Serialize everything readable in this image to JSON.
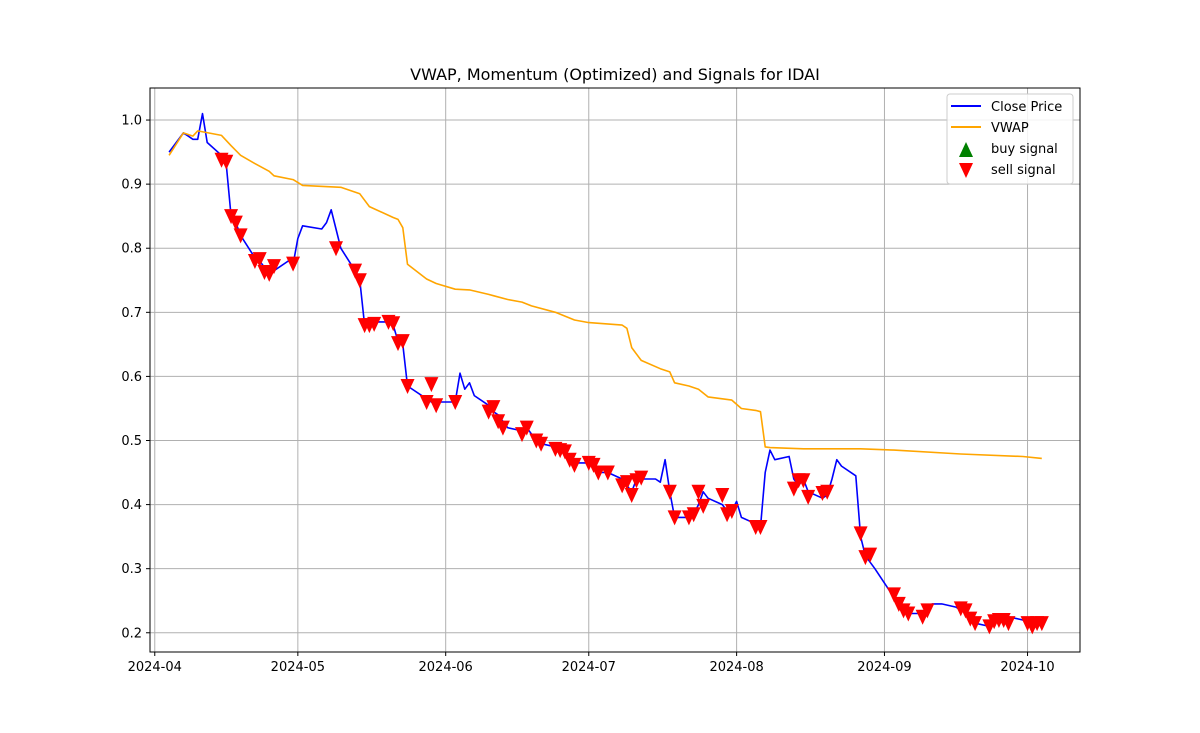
{
  "chart_data": {
    "type": "line",
    "title": "VWAP, Momentum (Optimized) and Signals for IDAI",
    "xlabel": "",
    "ylabel": "",
    "xlim": [
      "2024-03-31",
      "2024-10-12"
    ],
    "ylim": [
      0.17,
      1.05
    ],
    "xticks": [
      "2024-04-01",
      "2024-05-01",
      "2024-06-01",
      "2024-07-01",
      "2024-08-01",
      "2024-09-01",
      "2024-10-01"
    ],
    "xtick_labels": [
      "2024-04",
      "2024-05",
      "2024-06",
      "2024-07",
      "2024-08",
      "2024-09",
      "2024-10"
    ],
    "yticks": [
      0.2,
      0.3,
      0.4,
      0.5,
      0.6,
      0.7,
      0.8,
      0.9,
      1.0
    ],
    "ytick_labels": [
      "0.2",
      "0.3",
      "0.4",
      "0.5",
      "0.6",
      "0.7",
      "0.8",
      "0.9",
      "1.0"
    ],
    "grid": true,
    "legend_position": "top-right",
    "colors": {
      "close": "#0000ff",
      "vwap": "#ffa500",
      "buy": "#008000",
      "sell": "#ff0000"
    },
    "series": [
      {
        "name": "Close Price",
        "kind": "line",
        "x": [
          "2024-04-04",
          "2024-04-07",
          "2024-04-08",
          "2024-04-09",
          "2024-04-10",
          "2024-04-11",
          "2024-04-12",
          "2024-04-15",
          "2024-04-16",
          "2024-04-17",
          "2024-04-18",
          "2024-04-19",
          "2024-04-22",
          "2024-04-23",
          "2024-04-24",
          "2024-04-25",
          "2024-04-26",
          "2024-04-29",
          "2024-04-30",
          "2024-05-01",
          "2024-05-02",
          "2024-05-06",
          "2024-05-07",
          "2024-05-08",
          "2024-05-09",
          "2024-05-10",
          "2024-05-13",
          "2024-05-14",
          "2024-05-15",
          "2024-05-16",
          "2024-05-17",
          "2024-05-20",
          "2024-05-21",
          "2024-05-22",
          "2024-05-23",
          "2024-05-24",
          "2024-05-28",
          "2024-05-29",
          "2024-05-30",
          "2024-05-31",
          "2024-06-03",
          "2024-06-04",
          "2024-06-05",
          "2024-06-06",
          "2024-06-07",
          "2024-06-10",
          "2024-06-11",
          "2024-06-12",
          "2024-06-13",
          "2024-06-14",
          "2024-06-17",
          "2024-06-18",
          "2024-06-20",
          "2024-06-21",
          "2024-06-24",
          "2024-06-25",
          "2024-06-26",
          "2024-06-27",
          "2024-06-28",
          "2024-07-01",
          "2024-07-02",
          "2024-07-03",
          "2024-07-05",
          "2024-07-08",
          "2024-07-09",
          "2024-07-10",
          "2024-07-11",
          "2024-07-12",
          "2024-07-15",
          "2024-07-16",
          "2024-07-17",
          "2024-07-18",
          "2024-07-19",
          "2024-07-22",
          "2024-07-23",
          "2024-07-24",
          "2024-07-25",
          "2024-07-26",
          "2024-07-29",
          "2024-07-30",
          "2024-07-31",
          "2024-08-01",
          "2024-08-02",
          "2024-08-05",
          "2024-08-06",
          "2024-08-07",
          "2024-08-08",
          "2024-08-09",
          "2024-08-12",
          "2024-08-13",
          "2024-08-14",
          "2024-08-15",
          "2024-08-16",
          "2024-08-19",
          "2024-08-20",
          "2024-08-21",
          "2024-08-22",
          "2024-08-23",
          "2024-08-26",
          "2024-08-27",
          "2024-08-28",
          "2024-08-29",
          "2024-08-30",
          "2024-09-03",
          "2024-09-04",
          "2024-09-05",
          "2024-09-06",
          "2024-09-09",
          "2024-09-10",
          "2024-09-11",
          "2024-09-12",
          "2024-09-13",
          "2024-09-16",
          "2024-09-17",
          "2024-09-18",
          "2024-09-19",
          "2024-09-20",
          "2024-09-23",
          "2024-09-24",
          "2024-09-25",
          "2024-09-26",
          "2024-09-27",
          "2024-09-30",
          "2024-10-01",
          "2024-10-02",
          "2024-10-03",
          "2024-10-04"
        ],
        "y": [
          0.95,
          0.98,
          0.975,
          0.97,
          0.97,
          1.01,
          0.965,
          0.945,
          0.93,
          0.85,
          0.84,
          0.82,
          0.785,
          0.78,
          0.77,
          0.76,
          0.765,
          0.78,
          0.775,
          0.815,
          0.835,
          0.83,
          0.84,
          0.86,
          0.83,
          0.8,
          0.765,
          0.75,
          0.68,
          0.68,
          0.685,
          0.685,
          0.68,
          0.655,
          0.65,
          0.585,
          0.565,
          0.56,
          0.555,
          0.56,
          0.56,
          0.605,
          0.58,
          0.59,
          0.57,
          0.555,
          0.545,
          0.54,
          0.53,
          0.52,
          0.515,
          0.52,
          0.5,
          0.495,
          0.49,
          0.485,
          0.48,
          0.47,
          0.465,
          0.465,
          0.46,
          0.45,
          0.45,
          0.44,
          0.43,
          0.42,
          0.44,
          0.44,
          0.44,
          0.435,
          0.47,
          0.42,
          0.38,
          0.38,
          0.385,
          0.4,
          0.42,
          0.41,
          0.4,
          0.39,
          0.39,
          0.405,
          0.38,
          0.37,
          0.365,
          0.45,
          0.485,
          0.47,
          0.475,
          0.44,
          0.43,
          0.44,
          0.42,
          0.41,
          0.415,
          0.44,
          0.47,
          0.46,
          0.445,
          0.35,
          0.32,
          0.31,
          0.3,
          0.255,
          0.24,
          0.235,
          0.23,
          0.23,
          0.24,
          0.245,
          0.245,
          0.245,
          0.24,
          0.235,
          0.235,
          0.22,
          0.215,
          0.21,
          0.22,
          0.22,
          0.215,
          0.225,
          0.22,
          0.215,
          0.215,
          0.21,
          0.215
        ]
      },
      {
        "name": "VWAP",
        "kind": "line",
        "x": [
          "2024-04-04",
          "2024-04-07",
          "2024-04-09",
          "2024-04-10",
          "2024-04-15",
          "2024-04-17",
          "2024-04-19",
          "2024-04-22",
          "2024-04-25",
          "2024-04-26",
          "2024-04-30",
          "2024-05-02",
          "2024-05-10",
          "2024-05-14",
          "2024-05-16",
          "2024-05-21",
          "2024-05-22",
          "2024-05-23",
          "2024-05-24",
          "2024-05-28",
          "2024-05-30",
          "2024-06-03",
          "2024-06-06",
          "2024-06-10",
          "2024-06-11",
          "2024-06-14",
          "2024-06-17",
          "2024-06-19",
          "2024-06-24",
          "2024-06-28",
          "2024-07-01",
          "2024-07-08",
          "2024-07-09",
          "2024-07-10",
          "2024-07-12",
          "2024-07-16",
          "2024-07-18",
          "2024-07-19",
          "2024-07-22",
          "2024-07-24",
          "2024-07-26",
          "2024-07-31",
          "2024-08-02",
          "2024-08-05",
          "2024-08-06",
          "2024-08-07",
          "2024-08-08",
          "2024-08-15",
          "2024-08-27",
          "2024-09-03",
          "2024-09-17",
          "2024-09-30",
          "2024-10-04"
        ],
        "y": [
          0.945,
          0.98,
          0.975,
          0.983,
          0.976,
          0.96,
          0.945,
          0.932,
          0.92,
          0.913,
          0.907,
          0.898,
          0.895,
          0.885,
          0.865,
          0.848,
          0.845,
          0.832,
          0.775,
          0.752,
          0.745,
          0.736,
          0.735,
          0.728,
          0.726,
          0.72,
          0.716,
          0.71,
          0.7,
          0.688,
          0.684,
          0.68,
          0.675,
          0.645,
          0.625,
          0.612,
          0.607,
          0.59,
          0.585,
          0.58,
          0.568,
          0.563,
          0.55,
          0.547,
          0.545,
          0.49,
          0.489,
          0.487,
          0.487,
          0.485,
          0.479,
          0.475,
          0.472
        ]
      }
    ],
    "buy_signals": {
      "name": "buy signal",
      "x": [],
      "y": []
    },
    "sell_signals": {
      "name": "sell signal",
      "x": [
        "2024-04-15",
        "2024-04-16",
        "2024-04-17",
        "2024-04-18",
        "2024-04-19",
        "2024-04-22",
        "2024-04-23",
        "2024-04-24",
        "2024-04-25",
        "2024-04-26",
        "2024-04-30",
        "2024-05-09",
        "2024-05-13",
        "2024-05-14",
        "2024-05-15",
        "2024-05-16",
        "2024-05-17",
        "2024-05-20",
        "2024-05-21",
        "2024-05-22",
        "2024-05-23",
        "2024-05-24",
        "2024-05-28",
        "2024-05-29",
        "2024-05-30",
        "2024-06-03",
        "2024-06-10",
        "2024-06-11",
        "2024-06-12",
        "2024-06-13",
        "2024-06-17",
        "2024-06-18",
        "2024-06-20",
        "2024-06-21",
        "2024-06-24",
        "2024-06-25",
        "2024-06-26",
        "2024-06-27",
        "2024-06-28",
        "2024-07-01",
        "2024-07-02",
        "2024-07-03",
        "2024-07-05",
        "2024-07-08",
        "2024-07-09",
        "2024-07-10",
        "2024-07-11",
        "2024-07-12",
        "2024-07-18",
        "2024-07-19",
        "2024-07-22",
        "2024-07-23",
        "2024-07-24",
        "2024-07-25",
        "2024-07-29",
        "2024-07-30",
        "2024-07-31",
        "2024-08-05",
        "2024-08-06",
        "2024-08-13",
        "2024-08-14",
        "2024-08-15",
        "2024-08-16",
        "2024-08-19",
        "2024-08-20",
        "2024-08-27",
        "2024-08-28",
        "2024-08-29",
        "2024-09-03",
        "2024-09-04",
        "2024-09-05",
        "2024-09-06",
        "2024-09-09",
        "2024-09-10",
        "2024-09-17",
        "2024-09-18",
        "2024-09-19",
        "2024-09-20",
        "2024-09-23",
        "2024-09-24",
        "2024-09-25",
        "2024-09-26",
        "2024-09-27",
        "2024-10-01",
        "2024-10-02",
        "2024-10-03",
        "2024-10-04"
      ],
      "y": [
        0.938,
        0.935,
        0.85,
        0.84,
        0.82,
        0.78,
        0.783,
        0.763,
        0.76,
        0.772,
        0.776,
        0.8,
        0.765,
        0.75,
        0.68,
        0.68,
        0.682,
        0.685,
        0.683,
        0.652,
        0.655,
        0.585,
        0.56,
        0.588,
        0.555,
        0.56,
        0.545,
        0.552,
        0.53,
        0.52,
        0.51,
        0.52,
        0.5,
        0.495,
        0.487,
        0.485,
        0.483,
        0.47,
        0.462,
        0.465,
        0.462,
        0.45,
        0.45,
        0.43,
        0.435,
        0.415,
        0.438,
        0.442,
        0.42,
        0.38,
        0.38,
        0.385,
        0.42,
        0.398,
        0.415,
        0.385,
        0.39,
        0.365,
        0.365,
        0.425,
        0.438,
        0.438,
        0.412,
        0.418,
        0.42,
        0.355,
        0.318,
        0.322,
        0.26,
        0.245,
        0.235,
        0.23,
        0.225,
        0.235,
        0.238,
        0.235,
        0.222,
        0.215,
        0.21,
        0.218,
        0.22,
        0.22,
        0.215,
        0.215,
        0.21,
        0.215,
        0.215
      ]
    }
  }
}
